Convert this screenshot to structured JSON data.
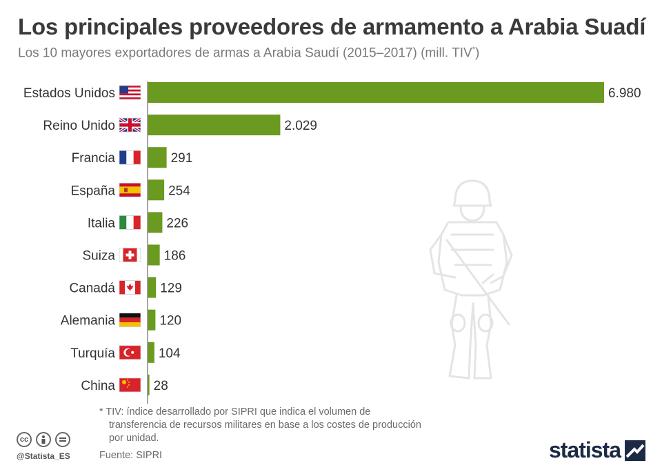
{
  "header": {
    "title": "Los principales proveedores de armamento a Arabia Suadí",
    "subtitle": "Los 10 mayores exportadores de armas a Arabia Saudí (2015–2017) (mill. TIV",
    "subtitle_mark": "*",
    "subtitle_end": ")"
  },
  "chart_data": {
    "type": "bar",
    "orientation": "horizontal",
    "categories": [
      "Estados Unidos",
      "Reino Unido",
      "Francia",
      "España",
      "Italia",
      "Suiza",
      "Canadá",
      "Alemania",
      "Turquía",
      "China"
    ],
    "values": [
      6980,
      2029,
      291,
      254,
      226,
      186,
      129,
      120,
      104,
      28
    ],
    "value_labels": [
      "6.980",
      "2.029",
      "291",
      "254",
      "226",
      "186",
      "129",
      "120",
      "104",
      "28"
    ],
    "flags": [
      "usa",
      "uk",
      "france",
      "spain",
      "italy",
      "switzerland",
      "canada",
      "germany",
      "turkey",
      "china"
    ],
    "xlim": [
      0,
      6980
    ],
    "bar_color": "#6a9a1f",
    "grid": false,
    "legend": "none"
  },
  "footnote": {
    "line1": "* TIV: índice desarrollado por SIPRI que indica el volumen de",
    "line2": "transferencia de recursos militares en base a los costes de producción",
    "line3": "por unidad."
  },
  "source": "Fuente: SIPRI",
  "credit": {
    "handle": "@Statista_ES",
    "license_icons": [
      "cc-icon",
      "by-icon",
      "nd-icon"
    ]
  },
  "brand": {
    "name": "statista",
    "color": "#1c2a45"
  }
}
